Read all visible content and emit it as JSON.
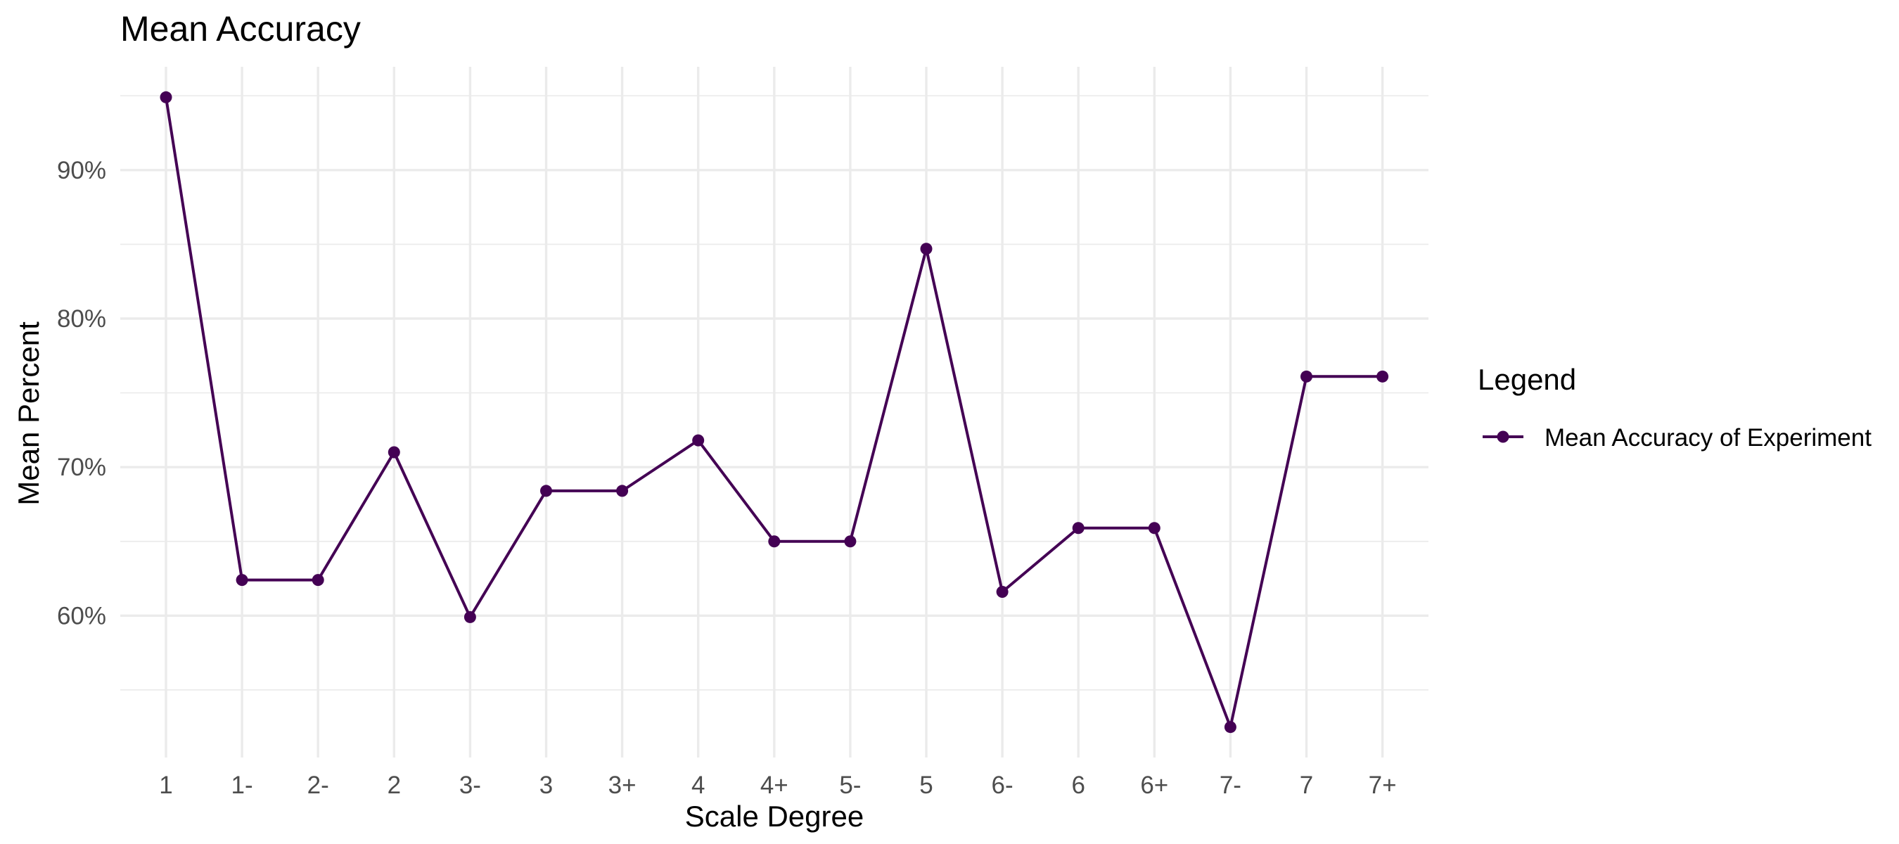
{
  "chart_data": {
    "type": "line",
    "title": "Mean Accuracy",
    "xlabel": "Scale Degree",
    "ylabel": "Mean Percent",
    "categories": [
      "1",
      "1-",
      "2-",
      "2",
      "3-",
      "3",
      "3+",
      "4",
      "4+",
      "5-",
      "5",
      "6-",
      "6",
      "6+",
      "7-",
      "7",
      "7+"
    ],
    "series": [
      {
        "name": "Mean Accuracy of Experiment",
        "values": [
          94.9,
          62.4,
          62.4,
          71.0,
          59.9,
          68.4,
          68.4,
          71.8,
          65.0,
          65.0,
          84.7,
          61.6,
          65.9,
          65.9,
          52.5,
          76.1,
          76.1
        ]
      }
    ],
    "y_ticks": [
      {
        "value": 60,
        "label": "60%"
      },
      {
        "value": 70,
        "label": "70%"
      },
      {
        "value": 80,
        "label": "80%"
      },
      {
        "value": 90,
        "label": "90%"
      }
    ],
    "ylim": [
      50.45,
      96.95
    ],
    "y_minor_ticks": [
      55,
      65,
      75,
      85,
      95
    ],
    "grid": true,
    "legend": {
      "title": "Legend",
      "placement": "right"
    },
    "colors": {
      "line": "#440154",
      "grid": "#ebebeb",
      "tick_text": "#4d4d4d"
    }
  }
}
